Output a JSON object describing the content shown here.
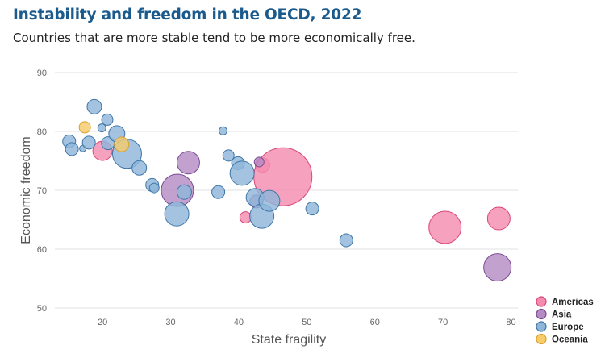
{
  "header": {
    "title": "Instability and freedom in the OECD, 2022",
    "subtitle": "Countries that are more stable tend to be more economically free."
  },
  "chart_data": {
    "type": "scatter",
    "title": "Instability and freedom in the OECD, 2022",
    "subtitle": "Countries that are more stable tend to be more economically free.",
    "xlabel": "State fragility",
    "ylabel": "Economic freedom",
    "xlim": [
      13,
      81
    ],
    "ylim": [
      50,
      90
    ],
    "xticks": [
      20,
      30,
      40,
      50,
      60,
      70,
      80
    ],
    "yticks": [
      50,
      60,
      70,
      80,
      90
    ],
    "grid": "horizontal",
    "legend_position": "bottom-right",
    "size_encoding": "bubble area",
    "series": [
      {
        "name": "Americas",
        "color": "#f48cb0",
        "stroke": "#d9487a",
        "points": [
          {
            "x": 20.0,
            "y": 76.7,
            "size": 12
          },
          {
            "x": 43.5,
            "y": 74.3,
            "size": 9
          },
          {
            "x": 41.0,
            "y": 65.4,
            "size": 7
          },
          {
            "x": 46.5,
            "y": 72.3,
            "size": 36
          },
          {
            "x": 70.3,
            "y": 63.7,
            "size": 20
          },
          {
            "x": 78.2,
            "y": 65.2,
            "size": 14
          }
        ]
      },
      {
        "name": "Asia",
        "color": "#b48cc4",
        "stroke": "#7a4a94",
        "points": [
          {
            "x": 32.6,
            "y": 74.7,
            "size": 14
          },
          {
            "x": 31.0,
            "y": 70.0,
            "size": 20
          },
          {
            "x": 43.0,
            "y": 74.8,
            "size": 6
          },
          {
            "x": 42.6,
            "y": 68.1,
            "size": 8
          },
          {
            "x": 78.0,
            "y": 56.9,
            "size": 17
          }
        ]
      },
      {
        "name": "Europe",
        "color": "#8fb6d9",
        "stroke": "#3f76a8",
        "points": [
          {
            "x": 15.1,
            "y": 78.3,
            "size": 8
          },
          {
            "x": 15.5,
            "y": 77.0,
            "size": 8
          },
          {
            "x": 17.1,
            "y": 77.1,
            "size": 4
          },
          {
            "x": 18.0,
            "y": 78.1,
            "size": 8
          },
          {
            "x": 18.8,
            "y": 84.2,
            "size": 9
          },
          {
            "x": 19.9,
            "y": 80.6,
            "size": 5
          },
          {
            "x": 20.7,
            "y": 82.0,
            "size": 7
          },
          {
            "x": 20.8,
            "y": 78.0,
            "size": 8
          },
          {
            "x": 22.1,
            "y": 79.6,
            "size": 10
          },
          {
            "x": 23.6,
            "y": 76.2,
            "size": 18
          },
          {
            "x": 25.4,
            "y": 73.8,
            "size": 9
          },
          {
            "x": 27.3,
            "y": 70.9,
            "size": 8
          },
          {
            "x": 27.6,
            "y": 70.4,
            "size": 6
          },
          {
            "x": 30.9,
            "y": 66.0,
            "size": 15
          },
          {
            "x": 32.0,
            "y": 69.7,
            "size": 9
          },
          {
            "x": 37.0,
            "y": 69.7,
            "size": 8
          },
          {
            "x": 37.7,
            "y": 80.1,
            "size": 5
          },
          {
            "x": 38.5,
            "y": 75.9,
            "size": 7
          },
          {
            "x": 39.9,
            "y": 74.6,
            "size": 8
          },
          {
            "x": 40.5,
            "y": 72.9,
            "size": 15
          },
          {
            "x": 42.4,
            "y": 68.8,
            "size": 11
          },
          {
            "x": 43.4,
            "y": 65.6,
            "size": 15
          },
          {
            "x": 44.5,
            "y": 68.2,
            "size": 13
          },
          {
            "x": 50.8,
            "y": 66.9,
            "size": 8
          },
          {
            "x": 55.8,
            "y": 61.5,
            "size": 8
          }
        ]
      },
      {
        "name": "Oceania",
        "color": "#f7cc6b",
        "stroke": "#dca12a",
        "points": [
          {
            "x": 17.4,
            "y": 80.7,
            "size": 7
          },
          {
            "x": 22.8,
            "y": 77.8,
            "size": 9
          }
        ]
      }
    ]
  }
}
